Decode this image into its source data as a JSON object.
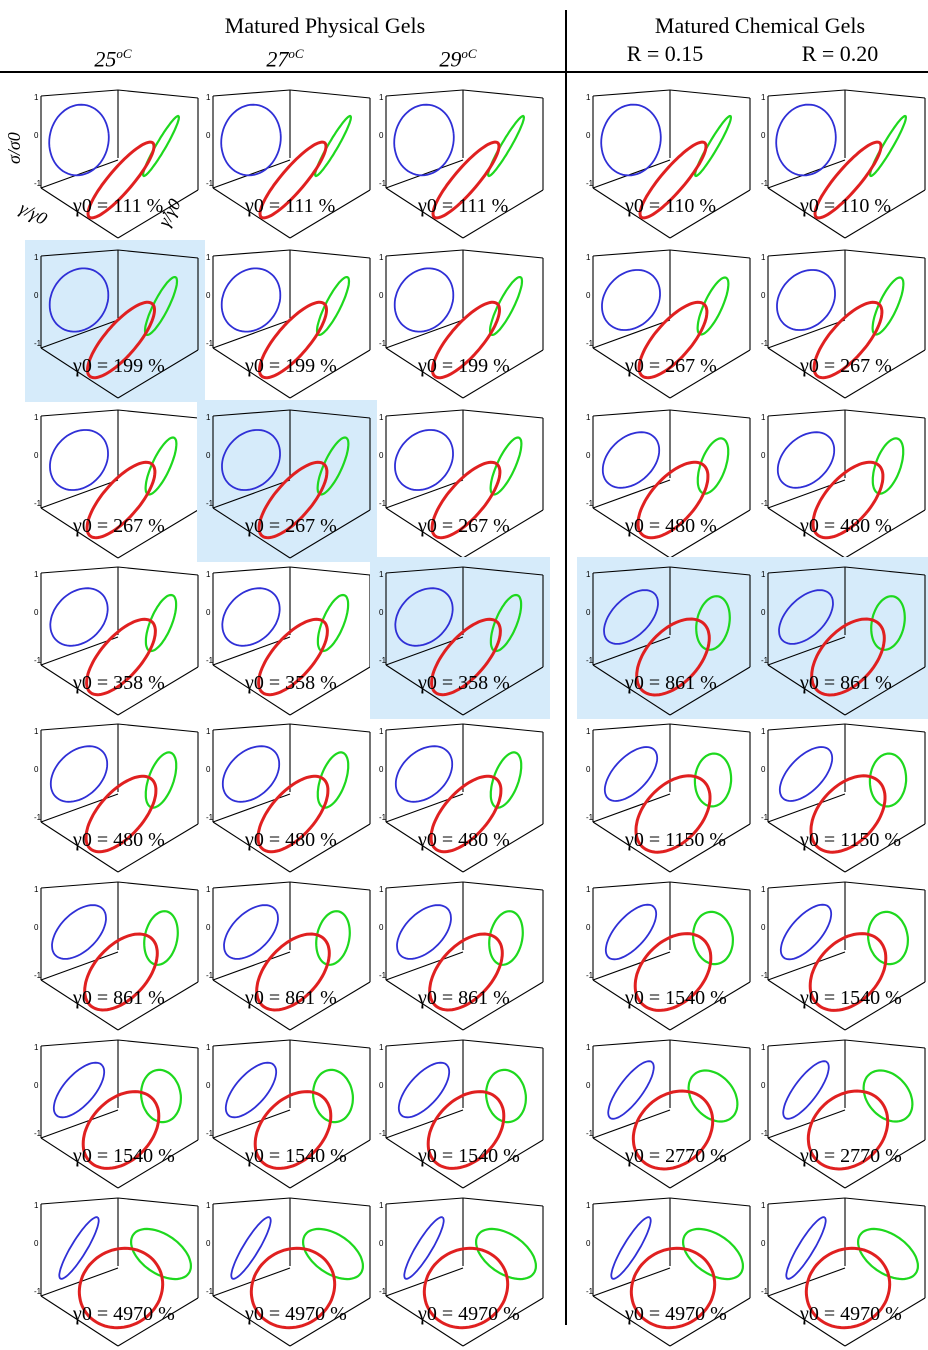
{
  "header": {
    "group_physical": "Matured Physical Gels",
    "group_chemical": "Matured Chemical Gels",
    "columns": [
      "25",
      "27",
      "29",
      "R = 0.15",
      "R = 0.20"
    ],
    "temperature_unit": "oC"
  },
  "axes": {
    "z_label": "σ/σ0",
    "x_label": "γ/γ0",
    "y_label": "γ̇/γ̇0",
    "z_ticks": [
      "1",
      "0",
      "-1"
    ]
  },
  "colors": {
    "elastic_projection": "#2f2fd6",
    "viscous_projection": "#1ed81e",
    "trajectory_3d": "#e02020",
    "highlight_background": "#d6ebfa",
    "frame": "#000000"
  },
  "chart_data": {
    "type": "lissajous-bowditch 3d grid",
    "columns": [
      "25oC",
      "27oC",
      "29oC",
      "R = 0.15",
      "R = 0.20"
    ],
    "strain_amplitude_percent": [
      [
        111,
        111,
        111,
        110,
        110
      ],
      [
        199,
        199,
        199,
        267,
        267
      ],
      [
        267,
        267,
        267,
        480,
        480
      ],
      [
        358,
        358,
        358,
        861,
        861
      ],
      [
        480,
        480,
        480,
        1150,
        1150
      ],
      [
        861,
        861,
        861,
        1540,
        1540
      ],
      [
        1540,
        1540,
        1540,
        2770,
        2770
      ],
      [
        4970,
        4970,
        4970,
        4970,
        4970
      ]
    ],
    "labels": [
      [
        "γ0 = 111 %",
        "γ0 = 111 %",
        "γ0 = 111 %",
        "γ0 = 110 %",
        "γ0 = 110 %"
      ],
      [
        "γ0 = 199 %",
        "γ0 = 199 %",
        "γ0 = 199 %",
        "γ0 = 267 %",
        "γ0 = 267 %"
      ],
      [
        "γ0 = 267 %",
        "γ0 = 267 %",
        "γ0 = 267 %",
        "γ0 = 480 %",
        "γ0 = 480 %"
      ],
      [
        "γ0 = 358 %",
        "γ0 = 358 %",
        "γ0 = 358 %",
        "γ0 = 861 %",
        "γ0 = 861 %"
      ],
      [
        "γ0 = 480 %",
        "γ0 = 480 %",
        "γ0 = 480 %",
        "γ0 = 1150 %",
        "γ0 = 1150 %"
      ],
      [
        "γ0 = 861 %",
        "γ0 = 861 %",
        "γ0 = 861 %",
        "γ0 = 1540 %",
        "γ0 = 1540 %"
      ],
      [
        "γ0 = 1540 %",
        "γ0 = 1540 %",
        "γ0 = 1540 %",
        "γ0 = 2770 %",
        "γ0 = 2770 %"
      ],
      [
        "γ0 = 4970 %",
        "γ0 = 4970 %",
        "γ0 = 4970 %",
        "γ0 = 4970 %",
        "γ0 = 4970 %"
      ]
    ],
    "highlighted": [
      [
        false,
        false,
        false,
        false,
        false
      ],
      [
        true,
        false,
        false,
        false,
        false
      ],
      [
        false,
        true,
        false,
        false,
        false
      ],
      [
        false,
        false,
        true,
        true,
        true
      ],
      [
        false,
        false,
        false,
        false,
        false
      ],
      [
        false,
        false,
        false,
        false,
        false
      ],
      [
        false,
        false,
        false,
        false,
        false
      ],
      [
        false,
        false,
        false,
        false,
        false
      ]
    ],
    "z_range": [
      -1,
      1
    ]
  }
}
